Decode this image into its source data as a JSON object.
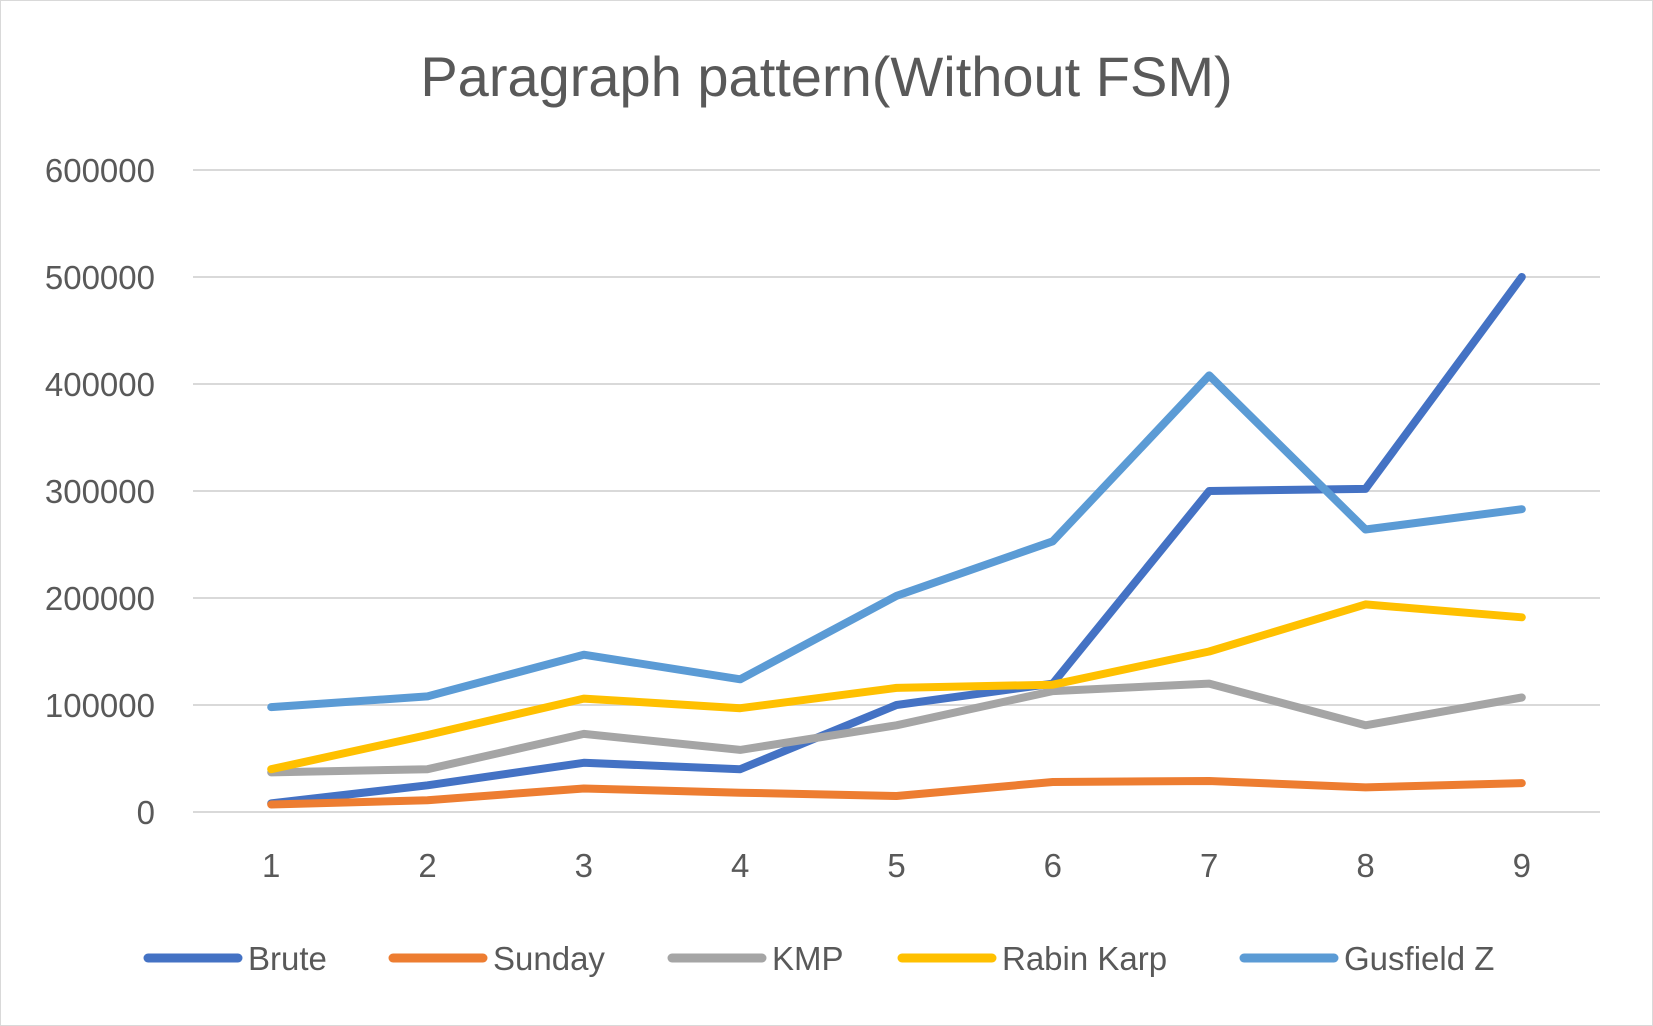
{
  "chart_data": {
    "type": "line",
    "title": "Paragraph pattern(Without FSM)",
    "xlabel": "",
    "ylabel": "",
    "categories": [
      "1",
      "2",
      "3",
      "4",
      "5",
      "6",
      "7",
      "8",
      "9"
    ],
    "ylim": [
      0,
      600000
    ],
    "yticks": [
      "0",
      "100000",
      "200000",
      "300000",
      "400000",
      "500000",
      "600000"
    ],
    "grid": true,
    "legend": "bottom",
    "series": [
      {
        "name": "Brute",
        "color": "#4472c4",
        "values": [
          8000,
          25000,
          46000,
          40000,
          100000,
          120000,
          300000,
          302000,
          500000
        ]
      },
      {
        "name": "Sunday",
        "color": "#ed7d31",
        "values": [
          7000,
          11000,
          22000,
          18000,
          15000,
          28000,
          29000,
          23000,
          27000
        ]
      },
      {
        "name": "KMP",
        "color": "#a5a5a5",
        "values": [
          37000,
          40000,
          73000,
          58000,
          81000,
          113000,
          120000,
          81000,
          107000
        ]
      },
      {
        "name": "Rabin Karp",
        "color": "#ffc000",
        "values": [
          40000,
          72000,
          106000,
          97000,
          116000,
          119000,
          150000,
          194000,
          182000
        ]
      },
      {
        "name": "Gusfield Z",
        "color": "#5b9bd5",
        "values": [
          98000,
          108000,
          147000,
          124000,
          202000,
          253000,
          408000,
          264000,
          283000
        ]
      }
    ]
  }
}
